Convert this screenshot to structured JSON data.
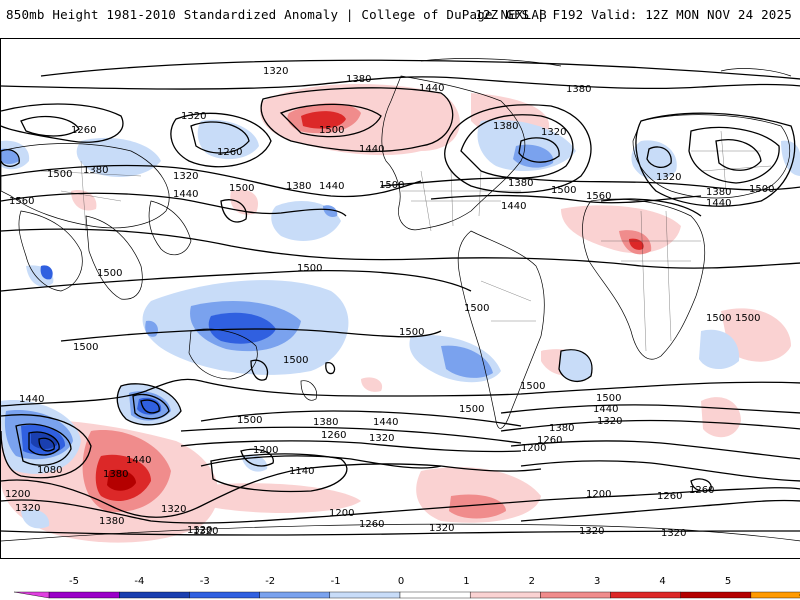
{
  "header": {
    "title": "850mb Height 1981-2010 Standardized Anomaly | College of DuPage NEXLAB",
    "run_info": "12Z GFS | F192 Valid: 12Z MON NOV 24 2025"
  },
  "colorbar": {
    "ticks": [
      "-5",
      "-4",
      "-3",
      "-2",
      "-1",
      "0",
      "1",
      "2",
      "3",
      "4",
      "5"
    ],
    "colors": [
      "#e040e0",
      "#9a00c8",
      "#1a3fb0",
      "#3060e0",
      "#7aa2ee",
      "#c8dcf8",
      "#ffffff",
      "#fad2d2",
      "#f08c8c",
      "#dc2828",
      "#b40000",
      "#ff9a00",
      "#ffd000"
    ]
  },
  "contours": {
    "l1320_north": "1320",
    "l1380_north": "1380",
    "l1440_alaska": "1440",
    "l1380_greenland": "1380",
    "l1260_nw": "1260",
    "l1320_nw": "1320",
    "l1260_sib": "1260",
    "l1320_sib": "1320",
    "l1500_ejapan": "1500",
    "l1380_pac": "1380",
    "l1440_pac": "1440",
    "l1500_pac": "1500",
    "l1500_alaska": "1500",
    "l1440_ak2": "1440",
    "l1500_hudson": "1500",
    "l1380_labrador": "1380",
    "l1320_labrador": "1320",
    "l1440_labrador": "1440",
    "l1500_atl": "1500",
    "l1560_atl": "1560",
    "l1380_scand": "1380",
    "l1320_scand": "1320",
    "l1500_europe": "1500",
    "l1440_europe": "1440",
    "l1500_siberia_w": "1500",
    "l1380_siberia_w": "1380",
    "l1440_siberia_w": "1440",
    "l1320_siberia_w": "1320",
    "l1560_china": "1560",
    "l1500_india": "1500",
    "l1500_cpac": "1500",
    "l1500_wio": "1500",
    "l1500_spac": "1500",
    "l1500_nchile": "1500",
    "l1500_atl_eq": "1500",
    "l1500_africa": "1500",
    "l1500_africa2": "1500",
    "l1500_braz": "1500",
    "l1500_satl": "1500",
    "l1440_sio": "1440",
    "l1500_sio": "1500",
    "l1380_spac": "1380",
    "l1440_spac": "1440",
    "l1260_spac": "1260",
    "l1320_spac": "1320",
    "l1200_spac": "1200",
    "l1140_spac": "1140",
    "l1080_sio": "1080",
    "l1200_sio": "1200",
    "l1320_sio": "1320",
    "l1380_sio": "1380",
    "l1440_nz": "1440",
    "l1380_nz": "1380",
    "l1320_nz": "1320",
    "l1200_ross": "1200",
    "l1260_ross": "1260",
    "l1320_ross": "1320",
    "l1500_satl2": "1500",
    "l1440_satl2": "1440",
    "l1320_satl2": "1320",
    "l1380_drake": "1380",
    "l1260_drake": "1260",
    "l1200_drake": "1200",
    "l1200_ant_atl": "1200",
    "l1260_ant_atl": "1260",
    "l1260_ant2": "1260",
    "l1320_ant_bottom": "1320",
    "l1320_ant_bottom2": "1320",
    "l1320_ant_bottom3": "1320"
  }
}
